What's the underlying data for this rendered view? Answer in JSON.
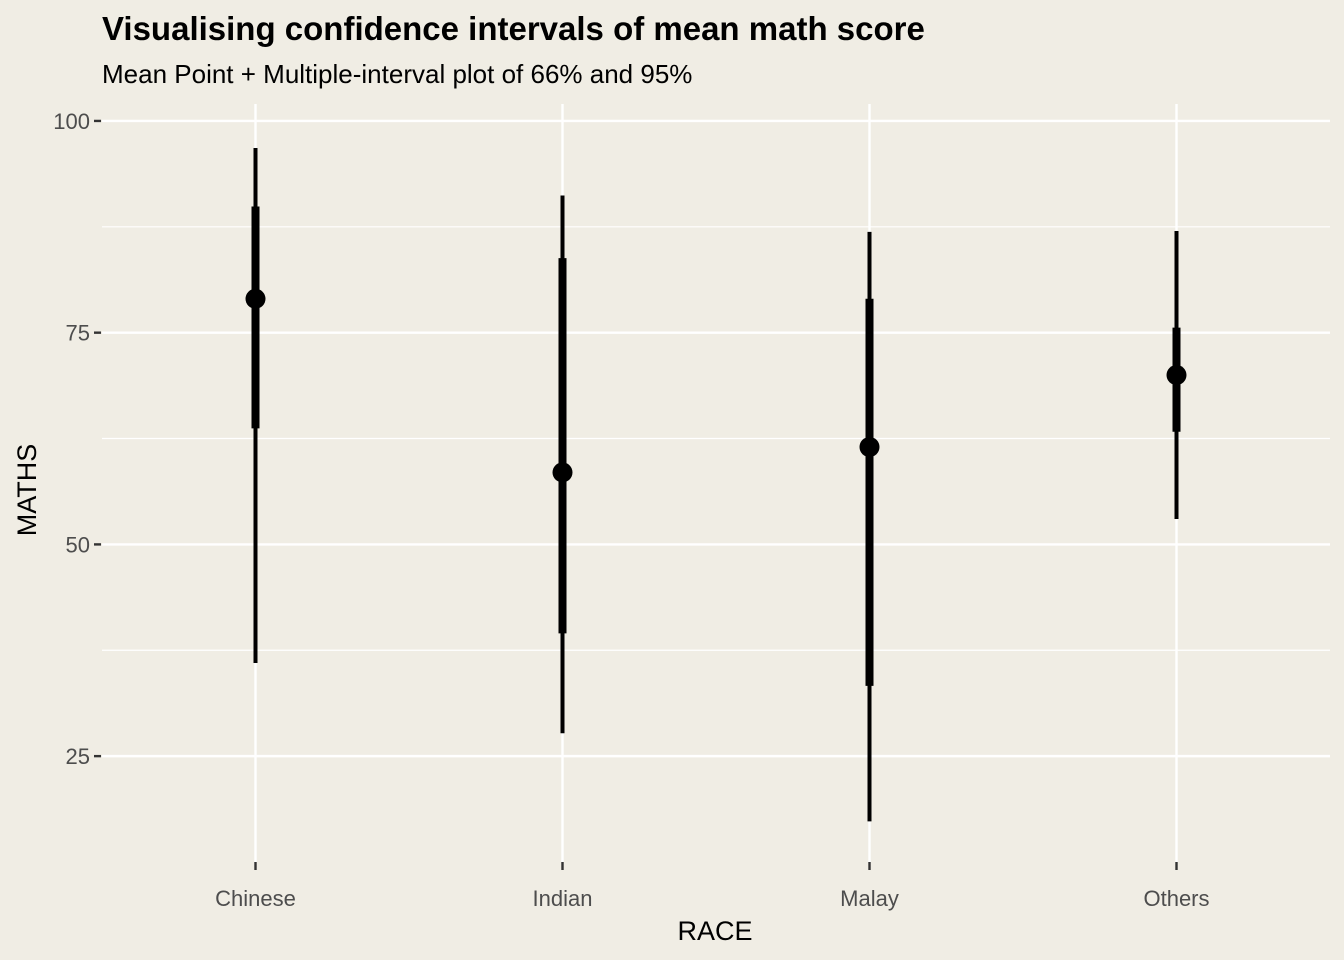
{
  "chart_data": {
    "type": "interval",
    "title": "Visualising confidence intervals of mean math score",
    "subtitle": "Mean Point + Multiple-interval plot of 66% and 95%",
    "xlabel": "RACE",
    "ylabel": "MATHS",
    "categories": [
      "Chinese",
      "Indian",
      "Malay",
      "Others"
    ],
    "ylim": [
      12.5,
      102
    ],
    "yticks": [
      25,
      50,
      75,
      100
    ],
    "ytick_labels": [
      "25",
      "50",
      "75",
      "100"
    ],
    "grid": true,
    "mean": [
      79.0,
      58.5,
      61.5,
      70.0
    ],
    "ci_66": [
      [
        63.7,
        89.9
      ],
      [
        39.5,
        83.8
      ],
      [
        33.3,
        79.0
      ],
      [
        63.3,
        75.6
      ]
    ],
    "ci_95": [
      [
        36.0,
        96.8
      ],
      [
        27.7,
        91.2
      ],
      [
        17.3,
        86.9
      ],
      [
        53.0,
        87.0
      ]
    ],
    "colors": {
      "background": "#f0ede4",
      "grid": "#ffffff",
      "marks": "#000000",
      "tick_text": "#4d4d4d"
    }
  }
}
